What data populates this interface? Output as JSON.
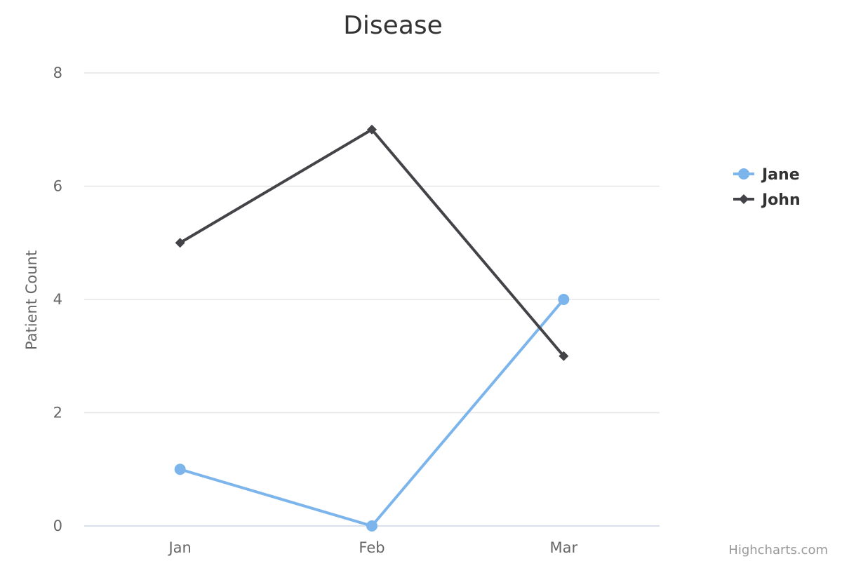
{
  "chart_data": {
    "type": "line",
    "title": "Disease",
    "xlabel": "",
    "ylabel": "Patient Count",
    "categories": [
      "Jan",
      "Feb",
      "Mar"
    ],
    "ylim": [
      0,
      8
    ],
    "yticks": [
      0,
      2,
      4,
      6,
      8
    ],
    "grid": true,
    "legend_position": "right",
    "series": [
      {
        "name": "Jane",
        "values": [
          1,
          0,
          4
        ],
        "color": "#7cb5ec",
        "marker": "circle"
      },
      {
        "name": "John",
        "values": [
          5,
          7,
          3
        ],
        "color": "#434348",
        "marker": "diamond"
      }
    ]
  },
  "credits": "Highcharts.com"
}
